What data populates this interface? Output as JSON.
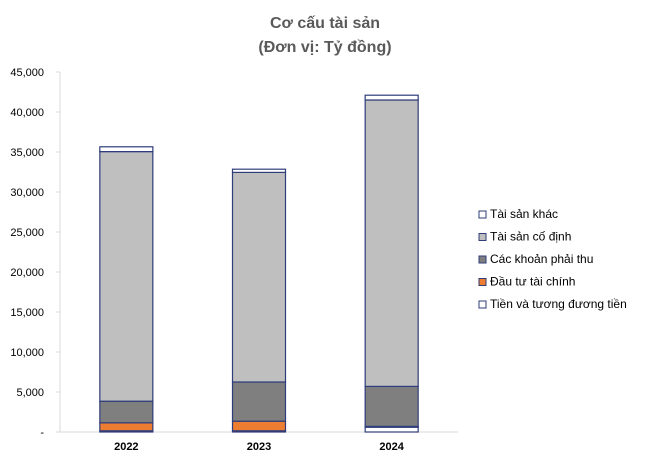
{
  "chart_data": {
    "type": "bar",
    "stacked": true,
    "title": "Cơ cấu tài sản",
    "subtitle": "(Đơn vị: Tỷ đồng)",
    "xlabel": "",
    "ylabel": "",
    "categories": [
      "2022",
      "2023",
      "2024"
    ],
    "ylim": [
      0,
      45000
    ],
    "yticks": [
      0,
      5000,
      10000,
      15000,
      20000,
      25000,
      30000,
      35000,
      40000,
      45000
    ],
    "ytick_labels": [
      "-",
      "5,000",
      "10,000",
      "15,000",
      "20,000",
      "25,000",
      "30,000",
      "35,000",
      "40,000",
      "45,000"
    ],
    "grid": false,
    "legend_position": "right",
    "series": [
      {
        "name": "Tiền và tương đương tiền",
        "color": "#ffffff",
        "values": [
          150,
          150,
          600
        ]
      },
      {
        "name": "Đầu tư tài chính",
        "color": "#ed7d31",
        "values": [
          1000,
          1200,
          100
        ]
      },
      {
        "name": "Các khoản phải thu",
        "color": "#7f7f7f",
        "values": [
          2700,
          4900,
          5000
        ]
      },
      {
        "name": "Tài sản cố định",
        "color": "#bfbfbf",
        "values": [
          31200,
          26200,
          35800
        ]
      },
      {
        "name": "Tài sản khác",
        "color": "#ffffff",
        "values": [
          600,
          400,
          600
        ]
      }
    ],
    "legend_order": [
      4,
      3,
      2,
      1,
      0
    ]
  }
}
